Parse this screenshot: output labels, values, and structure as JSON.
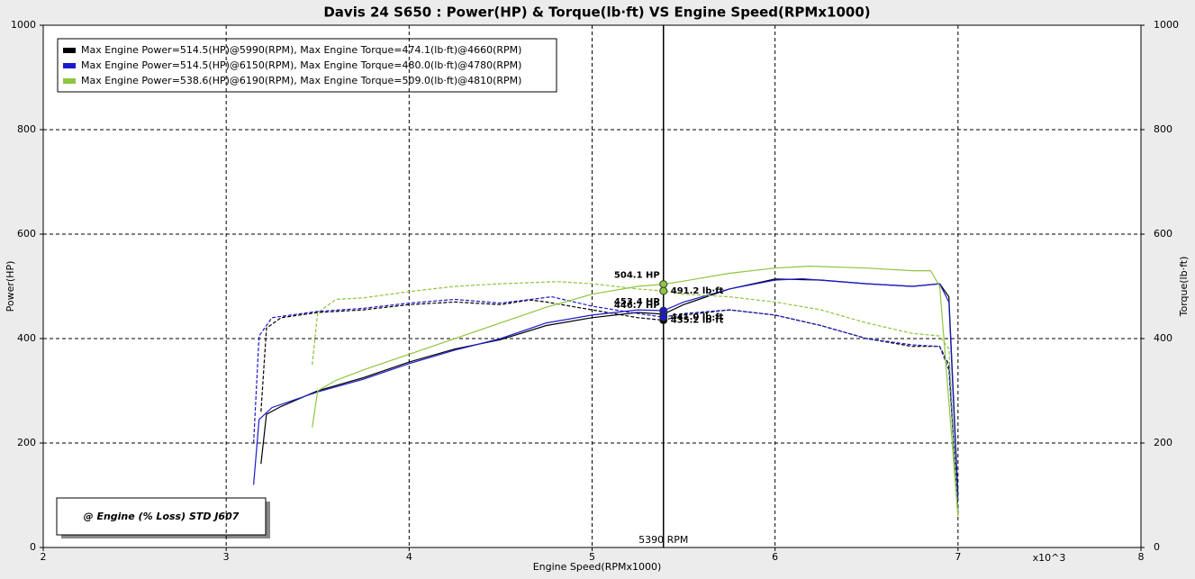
{
  "chart_data": {
    "type": "line",
    "title": "Davis 24 S650 : Power(HP) & Torque(lb·ft) VS Engine Speed(RPMx1000)",
    "x_label": "Engine Speed(RPMx1000)",
    "x_unit": "x10^3",
    "y_label": "Power(HP)",
    "y2_label": "Torque(lb·ft)",
    "annotation": "@ Engine (% Loss) STD J607",
    "xlim": [
      2,
      8
    ],
    "xticks": [
      2,
      3,
      4,
      5,
      6,
      7,
      8
    ],
    "ylim": [
      0,
      1000
    ],
    "yticks": [
      0,
      200,
      400,
      600,
      800,
      1000
    ],
    "y2lim": [
      0,
      1000
    ],
    "y2ticks": [
      0,
      200,
      400,
      600,
      800,
      1000
    ],
    "grid": true,
    "cursor": {
      "x": 5.39,
      "label": "5390 RPM"
    },
    "series": [
      {
        "name": "Max Engine Power=514.5(HP)@5990(RPM), Max Engine Torque=474.1(lb·ft)@4660(RPM)",
        "color": "#000000",
        "x": [
          3.19,
          3.22,
          3.3,
          3.5,
          3.75,
          4.0,
          4.25,
          4.5,
          4.75,
          5.0,
          5.25,
          5.39,
          5.5,
          5.75,
          6.0,
          6.25,
          6.5,
          6.75,
          6.9,
          6.95,
          7.0
        ],
        "values": [
          160,
          255,
          270,
          300,
          325,
          355,
          380,
          398,
          425,
          440,
          450,
          446.7,
          465,
          495,
          514,
          512,
          505,
          500,
          505,
          480,
          100
        ],
        "torque_x": [
          3.19,
          3.22,
          3.3,
          3.5,
          3.75,
          4.0,
          4.25,
          4.5,
          4.66,
          4.75,
          5.0,
          5.25,
          5.39,
          5.5,
          5.75,
          6.0,
          6.25,
          6.5,
          6.75,
          6.9,
          6.95,
          7.0
        ],
        "torque_values": [
          260,
          420,
          440,
          450,
          455,
          465,
          470,
          465,
          474,
          470,
          455,
          440,
          435.2,
          445,
          455,
          445,
          425,
          400,
          385,
          385,
          350,
          70
        ],
        "cursor_power": 446.7,
        "cursor_power_label": "446.7 HP",
        "cursor_torque": 435.2,
        "cursor_torque_label": "435.2 lb·ft"
      },
      {
        "name": "Max Engine Power=514.5(HP)@6150(RPM), Max Engine Torque=480.0(lb·ft)@4780(RPM)",
        "color": "#1a1acc",
        "x": [
          3.15,
          3.18,
          3.25,
          3.5,
          3.75,
          4.0,
          4.25,
          4.5,
          4.75,
          5.0,
          5.25,
          5.39,
          5.5,
          5.75,
          6.0,
          6.15,
          6.5,
          6.75,
          6.9,
          6.95,
          7.0
        ],
        "values": [
          120,
          245,
          268,
          298,
          322,
          352,
          378,
          400,
          430,
          445,
          455,
          453.4,
          470,
          495,
          512,
          514.5,
          505,
          500,
          505,
          470,
          90
        ],
        "torque_x": [
          3.15,
          3.18,
          3.25,
          3.5,
          3.75,
          4.0,
          4.25,
          4.5,
          4.78,
          5.0,
          5.25,
          5.39,
          5.5,
          5.75,
          6.0,
          6.25,
          6.5,
          6.75,
          6.9,
          6.95,
          7.0
        ],
        "torque_values": [
          200,
          405,
          440,
          452,
          458,
          468,
          475,
          468,
          480,
          462,
          448,
          441,
          448,
          455,
          445,
          425,
          400,
          388,
          385,
          340,
          70
        ],
        "cursor_power": 453.4,
        "cursor_power_label": "453.4 HP",
        "cursor_torque": 441.0,
        "cursor_torque_label": "441.0 lb·ft"
      },
      {
        "name": "Max Engine Power=538.6(HP)@6190(RPM), Max Engine Torque=509.0(lb·ft)@4810(RPM)",
        "color": "#8dc63f",
        "x": [
          3.47,
          3.5,
          3.6,
          3.75,
          4.0,
          4.25,
          4.5,
          4.75,
          5.0,
          5.25,
          5.39,
          5.5,
          5.75,
          6.0,
          6.19,
          6.5,
          6.75,
          6.85,
          6.9,
          7.0
        ],
        "values": [
          230,
          300,
          320,
          340,
          370,
          400,
          430,
          460,
          485,
          500,
          504.1,
          510,
          525,
          535,
          538.6,
          535,
          530,
          530,
          500,
          60
        ],
        "torque_x": [
          3.47,
          3.5,
          3.6,
          3.75,
          4.0,
          4.25,
          4.5,
          4.81,
          5.0,
          5.25,
          5.39,
          5.5,
          5.75,
          6.0,
          6.25,
          6.5,
          6.75,
          6.9,
          6.95,
          7.0
        ],
        "torque_values": [
          350,
          450,
          475,
          478,
          490,
          500,
          505,
          509,
          505,
          495,
          491.2,
          485,
          480,
          470,
          455,
          430,
          410,
          405,
          380,
          60
        ],
        "cursor_power": 504.1,
        "cursor_power_label": "504.1 HP",
        "cursor_torque": 491.2,
        "cursor_torque_label": "491.2 lb·ft"
      }
    ]
  }
}
